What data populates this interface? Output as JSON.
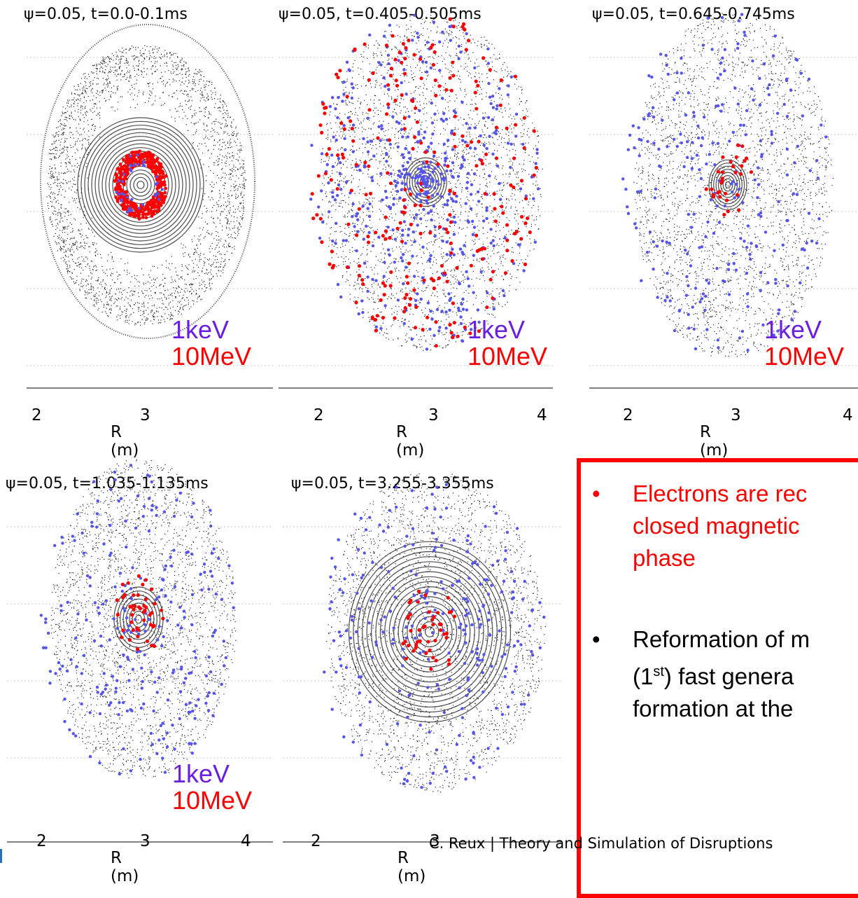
{
  "panels": [
    {
      "title": "ψ=0.05, t=0.0-0.1ms",
      "xticks": [
        "2",
        "3"
      ],
      "xlabel": "R (m)",
      "legend": [
        "1keV",
        "10MeV"
      ],
      "phase": 0
    },
    {
      "title": "ψ=0.05, t=0.405-0.505ms",
      "xticks": [
        "2",
        "3",
        "4"
      ],
      "xlabel": "R (m)",
      "legend": [
        "1keV",
        "10MeV"
      ],
      "phase": 1
    },
    {
      "title": "ψ=0.05, t=0.645-0.745ms",
      "xticks": [
        "2",
        "3",
        "4"
      ],
      "xlabel": "R (m)",
      "legend": [
        "1keV",
        "10MeV"
      ],
      "phase": 2
    },
    {
      "title": "ψ=0.05, t=1.035-1.135ms",
      "xticks": [
        "2",
        "3",
        "4"
      ],
      "xlabel": "R (m)",
      "legend": [
        "1keV",
        "10MeV"
      ],
      "phase": 3
    },
    {
      "title": "ψ=0.05, t=3.255-3.355ms",
      "xticks": [
        "2",
        "3"
      ],
      "xlabel": "R (m)",
      "legend": [],
      "phase": 4
    }
  ],
  "note": {
    "bullets": [
      {
        "lines": [
          "Electrons are rec",
          "closed  magnetic",
          "phase"
        ],
        "color": "#ff0000"
      },
      {
        "lines": [
          "Reformation of m",
          "(1st)  fast  genera",
          "formation at the"
        ],
        "color": "#000000"
      }
    ]
  },
  "footer": "C. Reux | Theory and Simulation of Disruptions",
  "colors": {
    "keV": "#5555ee",
    "MeV": "#ff0000",
    "frame": "#ff0000"
  }
}
